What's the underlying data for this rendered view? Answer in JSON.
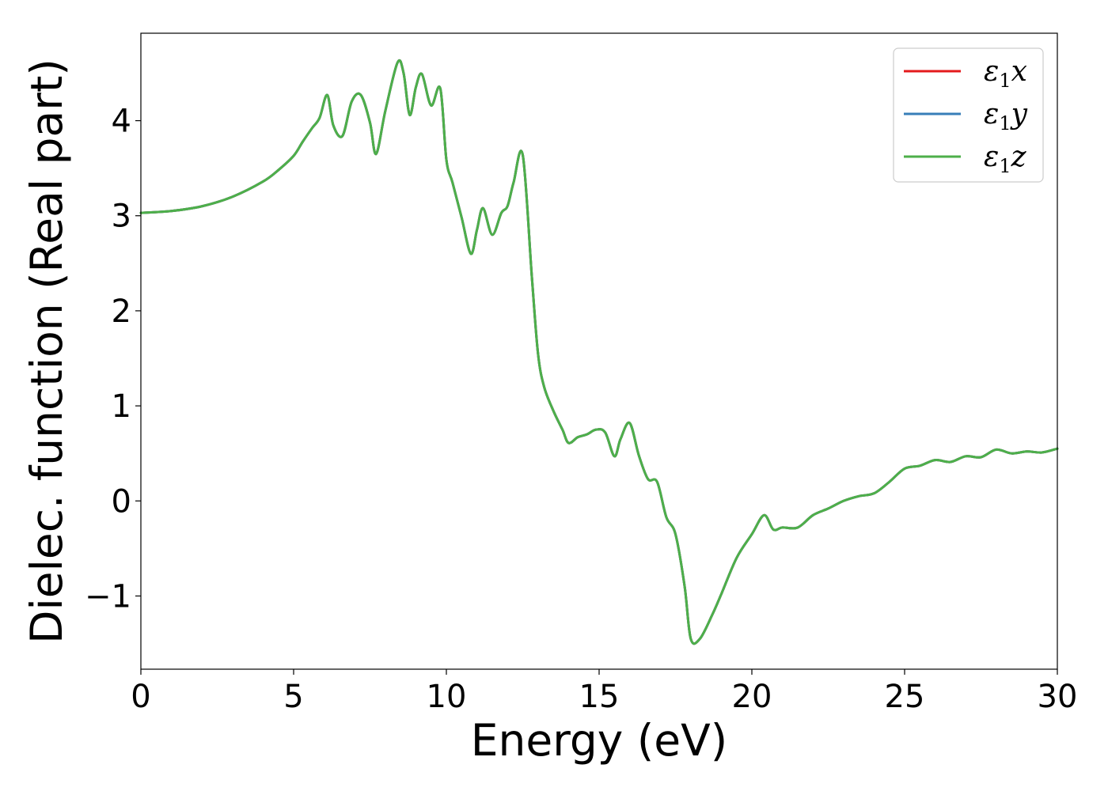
{
  "chart_data": {
    "type": "line",
    "xlabel": "Energy (eV)",
    "ylabel": "Dielec. function (Real part)",
    "xlim": [
      0,
      30
    ],
    "ylim": [
      -1.77,
      4.92
    ],
    "xticks": [
      0,
      5,
      10,
      15,
      20,
      25,
      30
    ],
    "xtick_labels": [
      "0",
      "5",
      "10",
      "15",
      "20",
      "25",
      "30"
    ],
    "yticks": [
      -1,
      0,
      1,
      2,
      3,
      4
    ],
    "ytick_labels": [
      "−1",
      "0",
      "1",
      "2",
      "3",
      "4"
    ],
    "grid": false,
    "legend_position": "top-right",
    "series": [
      {
        "name": "ε₁x",
        "legend_base": "ε",
        "legend_sub": "1",
        "legend_tail": "x",
        "color": "#e41a1c",
        "x": [
          0,
          1,
          2,
          3,
          4,
          4.5,
          5,
          5.3,
          5.6,
          5.85,
          6.1,
          6.3,
          6.6,
          6.9,
          7.2,
          7.5,
          7.7,
          8.0,
          8.4,
          8.6,
          8.8,
          9.0,
          9.2,
          9.5,
          9.8,
          10.0,
          10.2,
          10.5,
          10.8,
          11.0,
          11.2,
          11.5,
          11.8,
          12.0,
          12.2,
          12.5,
          12.8,
          13.0,
          13.2,
          13.5,
          13.8,
          14.0,
          14.3,
          14.6,
          14.9,
          15.2,
          15.5,
          15.7,
          16.0,
          16.3,
          16.6,
          16.9,
          17.2,
          17.5,
          17.8,
          18.0,
          18.3,
          18.7,
          19.0,
          19.5,
          20.0,
          20.4,
          20.7,
          21.0,
          21.5,
          22.0,
          22.5,
          23.0,
          23.5,
          24.0,
          24.5,
          25.0,
          25.5,
          26.0,
          26.5,
          27.0,
          27.5,
          28.0,
          28.5,
          29.0,
          29.5,
          30.0
        ],
        "y": [
          3.03,
          3.05,
          3.1,
          3.2,
          3.36,
          3.48,
          3.63,
          3.78,
          3.92,
          4.03,
          4.27,
          3.95,
          3.84,
          4.2,
          4.27,
          3.98,
          3.65,
          4.1,
          4.61,
          4.5,
          4.06,
          4.35,
          4.49,
          4.16,
          4.34,
          3.59,
          3.35,
          2.98,
          2.6,
          2.85,
          3.08,
          2.8,
          3.03,
          3.1,
          3.35,
          3.64,
          2.35,
          1.55,
          1.2,
          0.95,
          0.75,
          0.61,
          0.67,
          0.7,
          0.75,
          0.72,
          0.47,
          0.65,
          0.82,
          0.48,
          0.23,
          0.2,
          -0.17,
          -0.35,
          -0.9,
          -1.45,
          -1.45,
          -1.2,
          -0.98,
          -0.6,
          -0.35,
          -0.15,
          -0.3,
          -0.28,
          -0.28,
          -0.15,
          -0.08,
          0.0,
          0.05,
          0.08,
          0.2,
          0.34,
          0.37,
          0.43,
          0.41,
          0.47,
          0.46,
          0.54,
          0.5,
          0.52,
          0.51,
          0.55
        ]
      },
      {
        "name": "ε₁y",
        "legend_base": "ε",
        "legend_sub": "1",
        "legend_tail": "y",
        "color": "#377eb8",
        "x": [
          0,
          1,
          2,
          3,
          4,
          4.5,
          5,
          5.3,
          5.6,
          5.85,
          6.1,
          6.3,
          6.6,
          6.9,
          7.2,
          7.5,
          7.7,
          8.0,
          8.4,
          8.6,
          8.8,
          9.0,
          9.2,
          9.5,
          9.8,
          10.0,
          10.2,
          10.5,
          10.8,
          11.0,
          11.2,
          11.5,
          11.8,
          12.0,
          12.2,
          12.5,
          12.8,
          13.0,
          13.2,
          13.5,
          13.8,
          14.0,
          14.3,
          14.6,
          14.9,
          15.2,
          15.5,
          15.7,
          16.0,
          16.3,
          16.6,
          16.9,
          17.2,
          17.5,
          17.8,
          18.0,
          18.3,
          18.7,
          19.0,
          19.5,
          20.0,
          20.4,
          20.7,
          21.0,
          21.5,
          22.0,
          22.5,
          23.0,
          23.5,
          24.0,
          24.5,
          25.0,
          25.5,
          26.0,
          26.5,
          27.0,
          27.5,
          28.0,
          28.5,
          29.0,
          29.5,
          30.0
        ],
        "y": [
          3.03,
          3.05,
          3.1,
          3.2,
          3.36,
          3.48,
          3.63,
          3.78,
          3.92,
          4.03,
          4.27,
          3.95,
          3.84,
          4.2,
          4.27,
          3.98,
          3.65,
          4.1,
          4.61,
          4.5,
          4.06,
          4.35,
          4.49,
          4.16,
          4.34,
          3.59,
          3.35,
          2.98,
          2.6,
          2.85,
          3.08,
          2.8,
          3.03,
          3.1,
          3.35,
          3.64,
          2.35,
          1.55,
          1.2,
          0.95,
          0.75,
          0.61,
          0.67,
          0.7,
          0.75,
          0.72,
          0.47,
          0.65,
          0.82,
          0.48,
          0.23,
          0.2,
          -0.17,
          -0.35,
          -0.9,
          -1.45,
          -1.45,
          -1.2,
          -0.98,
          -0.6,
          -0.35,
          -0.15,
          -0.3,
          -0.28,
          -0.28,
          -0.15,
          -0.08,
          0.0,
          0.05,
          0.08,
          0.2,
          0.34,
          0.37,
          0.43,
          0.41,
          0.47,
          0.46,
          0.54,
          0.5,
          0.52,
          0.51,
          0.55
        ]
      },
      {
        "name": "ε₁z",
        "legend_base": "ε",
        "legend_sub": "1",
        "legend_tail": "z",
        "color": "#4daf4a",
        "x": [
          0,
          1,
          2,
          3,
          4,
          4.5,
          5,
          5.3,
          5.6,
          5.85,
          6.1,
          6.3,
          6.6,
          6.9,
          7.2,
          7.5,
          7.7,
          8.0,
          8.4,
          8.6,
          8.8,
          9.0,
          9.2,
          9.5,
          9.8,
          10.0,
          10.2,
          10.5,
          10.8,
          11.0,
          11.2,
          11.5,
          11.8,
          12.0,
          12.2,
          12.5,
          12.8,
          13.0,
          13.2,
          13.5,
          13.8,
          14.0,
          14.3,
          14.6,
          14.9,
          15.2,
          15.5,
          15.7,
          16.0,
          16.3,
          16.6,
          16.9,
          17.2,
          17.5,
          17.8,
          18.0,
          18.3,
          18.7,
          19.0,
          19.5,
          20.0,
          20.4,
          20.7,
          21.0,
          21.5,
          22.0,
          22.5,
          23.0,
          23.5,
          24.0,
          24.5,
          25.0,
          25.5,
          26.0,
          26.5,
          27.0,
          27.5,
          28.0,
          28.5,
          29.0,
          29.5,
          30.0
        ],
        "y": [
          3.03,
          3.05,
          3.1,
          3.2,
          3.36,
          3.48,
          3.63,
          3.78,
          3.92,
          4.03,
          4.27,
          3.95,
          3.84,
          4.2,
          4.27,
          3.98,
          3.65,
          4.1,
          4.61,
          4.5,
          4.06,
          4.35,
          4.49,
          4.16,
          4.34,
          3.59,
          3.35,
          2.98,
          2.6,
          2.85,
          3.08,
          2.8,
          3.03,
          3.1,
          3.35,
          3.64,
          2.35,
          1.55,
          1.2,
          0.95,
          0.75,
          0.61,
          0.67,
          0.7,
          0.75,
          0.72,
          0.47,
          0.65,
          0.82,
          0.48,
          0.23,
          0.2,
          -0.17,
          -0.35,
          -0.9,
          -1.45,
          -1.45,
          -1.2,
          -0.98,
          -0.6,
          -0.35,
          -0.15,
          -0.3,
          -0.28,
          -0.28,
          -0.15,
          -0.08,
          0.0,
          0.05,
          0.08,
          0.2,
          0.34,
          0.37,
          0.43,
          0.41,
          0.47,
          0.46,
          0.54,
          0.5,
          0.52,
          0.51,
          0.55
        ]
      }
    ]
  }
}
